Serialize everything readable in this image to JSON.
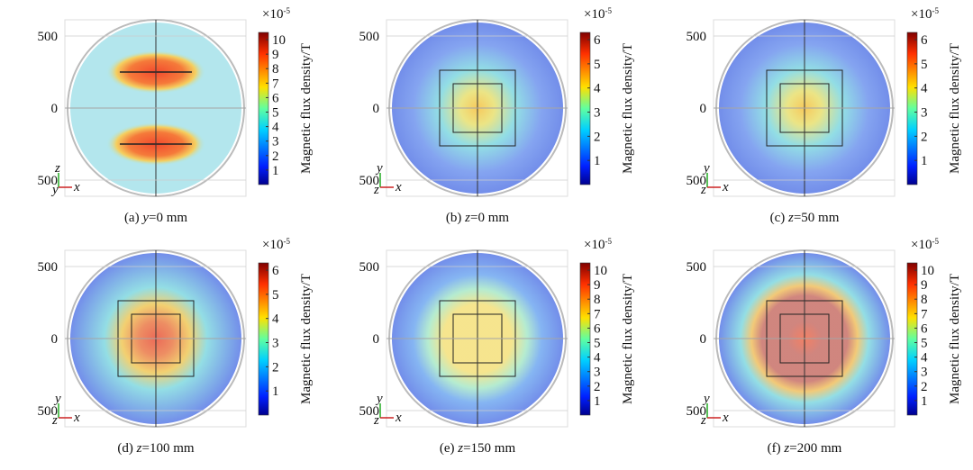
{
  "panels": [
    {
      "caption": {
        "label": "(a) ",
        "var": "y",
        "rest": "=0 mm"
      },
      "triad": [
        "z",
        "y",
        "x"
      ],
      "ylim": [
        -600,
        600
      ],
      "yticks": [
        500,
        0,
        {
          "value": -500,
          "label": "500"
        }
      ],
      "colorbar": {
        "base": "×10",
        "exponent": "-5",
        "title": "Magnetic flux density/T",
        "lim": [
          0,
          10.5
        ],
        "ticks": [
          1,
          2,
          3,
          4,
          5,
          6,
          7,
          8,
          9,
          10
        ]
      }
    },
    {
      "caption": {
        "label": "(b) ",
        "var": "z",
        "rest": "=0 mm"
      },
      "triad": [
        "y",
        "z",
        "x"
      ],
      "ylim": [
        -600,
        600
      ],
      "yticks": [
        500,
        0,
        {
          "value": -500,
          "label": "500"
        }
      ],
      "colorbar": {
        "base": "×10",
        "exponent": "-5",
        "title": "Magnetic flux density/T",
        "lim": [
          0,
          6.3
        ],
        "ticks": [
          1,
          2,
          3,
          4,
          5,
          6
        ]
      }
    },
    {
      "caption": {
        "label": "(c) ",
        "var": "z",
        "rest": "=50 mm"
      },
      "triad": [
        "y",
        "z",
        "x"
      ],
      "ylim": [
        -600,
        600
      ],
      "yticks": [
        500,
        0,
        {
          "value": -500,
          "label": "500"
        }
      ],
      "colorbar": {
        "base": "×10",
        "exponent": "-5",
        "title": "Magnetic flux density/T",
        "lim": [
          0,
          6.3
        ],
        "ticks": [
          1,
          2,
          3,
          4,
          5,
          6
        ]
      }
    },
    {
      "caption": {
        "label": "(d) ",
        "var": "z",
        "rest": "=100 mm"
      },
      "triad": [
        "y",
        "z",
        "x"
      ],
      "ylim": [
        -600,
        600
      ],
      "yticks": [
        500,
        0,
        {
          "value": -500,
          "label": "500"
        }
      ],
      "colorbar": {
        "base": "×10",
        "exponent": "-5",
        "title": "Magnetic flux density/T",
        "lim": [
          0,
          6.3
        ],
        "ticks": [
          1,
          2,
          3,
          4,
          5,
          6
        ]
      }
    },
    {
      "caption": {
        "label": "(e) ",
        "var": "z",
        "rest": "=150 mm"
      },
      "triad": [
        "y",
        "z",
        "x"
      ],
      "ylim": [
        -600,
        600
      ],
      "yticks": [
        500,
        0,
        {
          "value": -500,
          "label": "500"
        }
      ],
      "colorbar": {
        "base": "×10",
        "exponent": "-5",
        "title": "Magnetic flux density/T",
        "lim": [
          0,
          10.5
        ],
        "ticks": [
          1,
          2,
          3,
          4,
          5,
          6,
          7,
          8,
          9,
          10
        ]
      }
    },
    {
      "caption": {
        "label": "(f) ",
        "var": "z",
        "rest": "=200 mm"
      },
      "triad": [
        "y",
        "z",
        "x"
      ],
      "ylim": [
        -600,
        600
      ],
      "yticks": [
        500,
        0,
        {
          "value": -500,
          "label": "500"
        }
      ],
      "colorbar": {
        "base": "×10",
        "exponent": "-5",
        "title": "Magnetic flux density/T",
        "lim": [
          0,
          10.5
        ],
        "ticks": [
          1,
          2,
          3,
          4,
          5,
          6,
          7,
          8,
          9,
          10
        ]
      }
    }
  ]
}
